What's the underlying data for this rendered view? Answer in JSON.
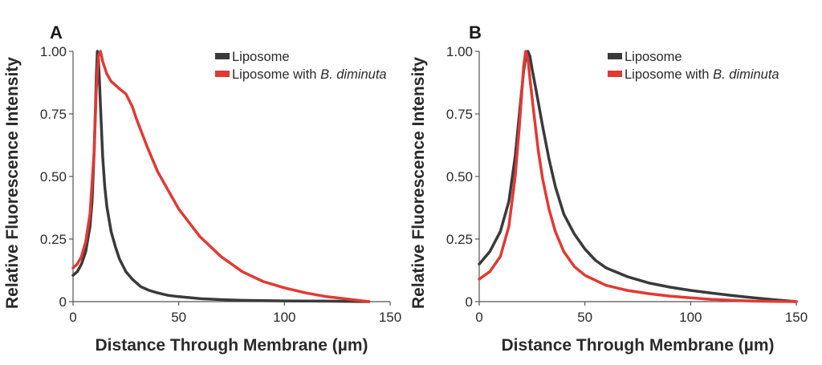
{
  "chart_data": [
    {
      "panel_label": "A",
      "type": "line",
      "title": "",
      "xlabel": "Distance Through Membrane (µm)",
      "ylabel": "Relative Fluorescence Intensity",
      "xlim": [
        0,
        150
      ],
      "ylim": [
        0,
        1
      ],
      "xticks": [
        0,
        50,
        100,
        150
      ],
      "xtick_labels": [
        "0",
        "50",
        "100",
        "150"
      ],
      "yticks": [
        0,
        0.25,
        0.5,
        0.75,
        1.0
      ],
      "ytick_labels": [
        "0",
        "0.25",
        "0.50",
        "0.75",
        "1.00"
      ],
      "grid": false,
      "legend": "top-right",
      "legend_entries": [
        {
          "prefix": "Liposome",
          "italic": ""
        },
        {
          "prefix": "Liposome with ",
          "italic": "B. diminuta"
        }
      ],
      "series": [
        {
          "name": "Liposome",
          "color": "#3a3a3a",
          "x": [
            0,
            2,
            4,
            6,
            8,
            9,
            10,
            10.5,
            11,
            11.5,
            12,
            12.5,
            13,
            14,
            15,
            16,
            18,
            20,
            22,
            25,
            28,
            32,
            36,
            40,
            45,
            50,
            60,
            70,
            80,
            100,
            120,
            140
          ],
          "y": [
            0.105,
            0.12,
            0.15,
            0.2,
            0.3,
            0.4,
            0.6,
            0.75,
            0.9,
            1.0,
            0.97,
            0.88,
            0.78,
            0.58,
            0.46,
            0.38,
            0.28,
            0.22,
            0.17,
            0.12,
            0.09,
            0.06,
            0.045,
            0.035,
            0.025,
            0.02,
            0.012,
            0.008,
            0.005,
            0.003,
            0.002,
            0.0
          ]
        },
        {
          "name": "Liposome with B. diminuta",
          "color": "#e03a35",
          "x": [
            0,
            2,
            4,
            6,
            8,
            10,
            11,
            12,
            13,
            14,
            16,
            18,
            20,
            22,
            25,
            28,
            30,
            35,
            40,
            50,
            60,
            70,
            80,
            90,
            100,
            110,
            120,
            130,
            140
          ],
          "y": [
            0.135,
            0.15,
            0.18,
            0.24,
            0.35,
            0.6,
            0.85,
            0.98,
            1.0,
            0.96,
            0.91,
            0.88,
            0.865,
            0.85,
            0.83,
            0.78,
            0.73,
            0.62,
            0.52,
            0.37,
            0.26,
            0.18,
            0.12,
            0.08,
            0.055,
            0.035,
            0.02,
            0.01,
            0.0
          ]
        }
      ]
    },
    {
      "panel_label": "B",
      "type": "line",
      "title": "",
      "xlabel": "Distance Through Membrane (µm)",
      "ylabel": "Relative Fluorescence Intensity",
      "xlim": [
        0,
        150
      ],
      "ylim": [
        0,
        1
      ],
      "xticks": [
        0,
        50,
        100,
        150
      ],
      "xtick_labels": [
        "0",
        "50",
        "100",
        "150"
      ],
      "yticks": [
        0,
        0.25,
        0.5,
        0.75,
        1.0
      ],
      "ytick_labels": [
        "0",
        "0.25",
        "0.50",
        "0.75",
        "1.00"
      ],
      "grid": false,
      "legend": "top-right",
      "legend_entries": [
        {
          "prefix": "Liposome",
          "italic": ""
        },
        {
          "prefix": "Liposome with ",
          "italic": "B. diminuta"
        }
      ],
      "series": [
        {
          "name": "Liposome",
          "color": "#3a3a3a",
          "x": [
            0,
            5,
            10,
            14,
            17,
            19,
            21,
            22,
            23,
            24,
            25,
            27,
            30,
            33,
            36,
            40,
            45,
            50,
            55,
            60,
            70,
            80,
            90,
            100,
            110,
            120,
            130,
            140,
            150
          ],
          "y": [
            0.15,
            0.2,
            0.28,
            0.4,
            0.58,
            0.75,
            0.92,
            0.98,
            1.0,
            0.98,
            0.93,
            0.84,
            0.7,
            0.57,
            0.46,
            0.35,
            0.27,
            0.21,
            0.165,
            0.135,
            0.1,
            0.075,
            0.058,
            0.045,
            0.034,
            0.024,
            0.015,
            0.007,
            0.0
          ]
        },
        {
          "name": "Liposome with B. diminuta",
          "color": "#e03a35",
          "x": [
            0,
            5,
            10,
            14,
            17,
            19,
            20,
            21,
            22,
            23,
            24,
            26,
            28,
            30,
            33,
            36,
            40,
            45,
            50,
            60,
            70,
            80,
            90,
            100,
            110,
            120,
            130,
            140,
            150
          ],
          "y": [
            0.09,
            0.12,
            0.18,
            0.3,
            0.5,
            0.7,
            0.82,
            0.94,
            1.0,
            0.97,
            0.89,
            0.74,
            0.6,
            0.49,
            0.37,
            0.28,
            0.2,
            0.14,
            0.105,
            0.065,
            0.045,
            0.032,
            0.022,
            0.015,
            0.009,
            0.005,
            0.002,
            0.001,
            0.0
          ]
        }
      ]
    }
  ]
}
